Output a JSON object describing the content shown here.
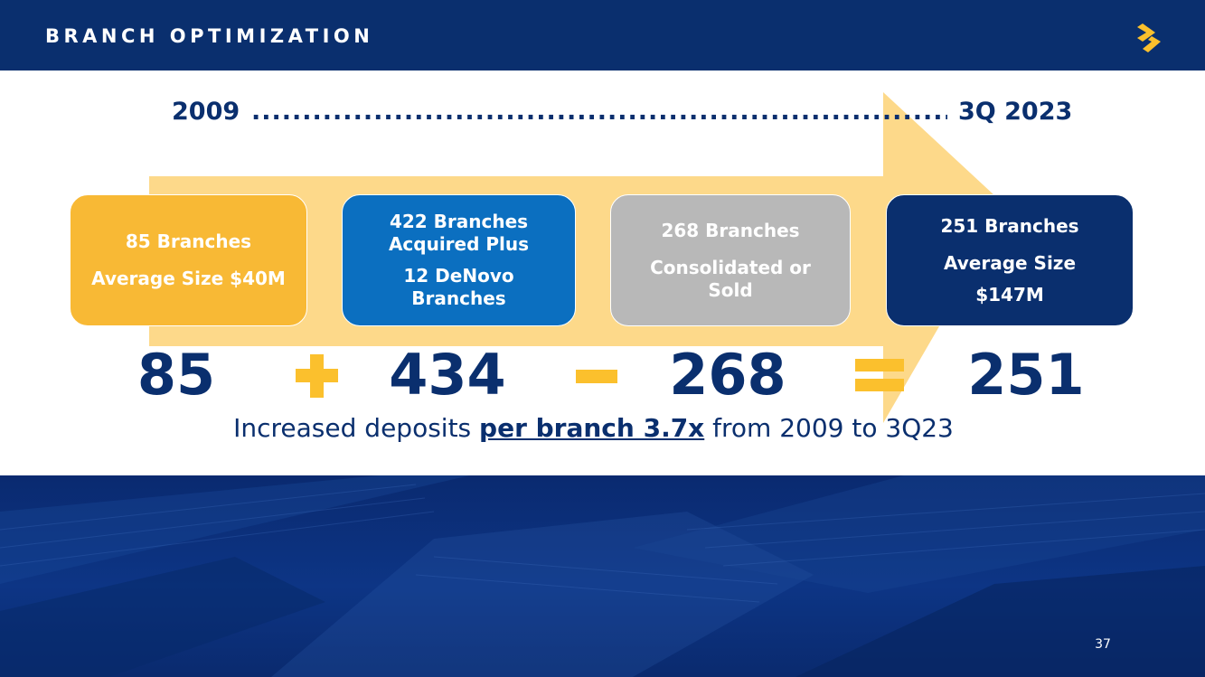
{
  "header": {
    "title": "BRANCH OPTIMIZATION"
  },
  "logo": {
    "icon": "s-logo-icon"
  },
  "timeline": {
    "start": "2009",
    "dots": "......................................................................................................",
    "end": "3Q 2023"
  },
  "boxes": [
    {
      "lines": [
        "85 Branches",
        "Average Size $40M"
      ],
      "color": "#f8b935"
    },
    {
      "lines": [
        "422 Branches",
        "Acquired Plus",
        "12 DeNovo",
        "Branches"
      ],
      "color": "#0b6fc0"
    },
    {
      "lines": [
        "268 Branches",
        "Consolidated or",
        "Sold"
      ],
      "color": "#b8b8b8"
    },
    {
      "lines": [
        "251 Branches",
        "Average Size",
        "$147M"
      ],
      "color": "#0a2f6e"
    }
  ],
  "equation": {
    "values": [
      "85",
      "434",
      "268",
      "251"
    ],
    "operators": [
      "plus",
      "minus",
      "equals"
    ]
  },
  "caption": {
    "prefix": "Increased deposits ",
    "emphasis": "per branch 3.7x",
    "suffix": " from 2009 to 3Q23"
  },
  "colors": {
    "navy": "#0a2f6e",
    "gold": "#f8b935",
    "arrow": "#fdd98a",
    "blue": "#0b6fc0",
    "gray": "#b8b8b8"
  },
  "page_number": "37"
}
